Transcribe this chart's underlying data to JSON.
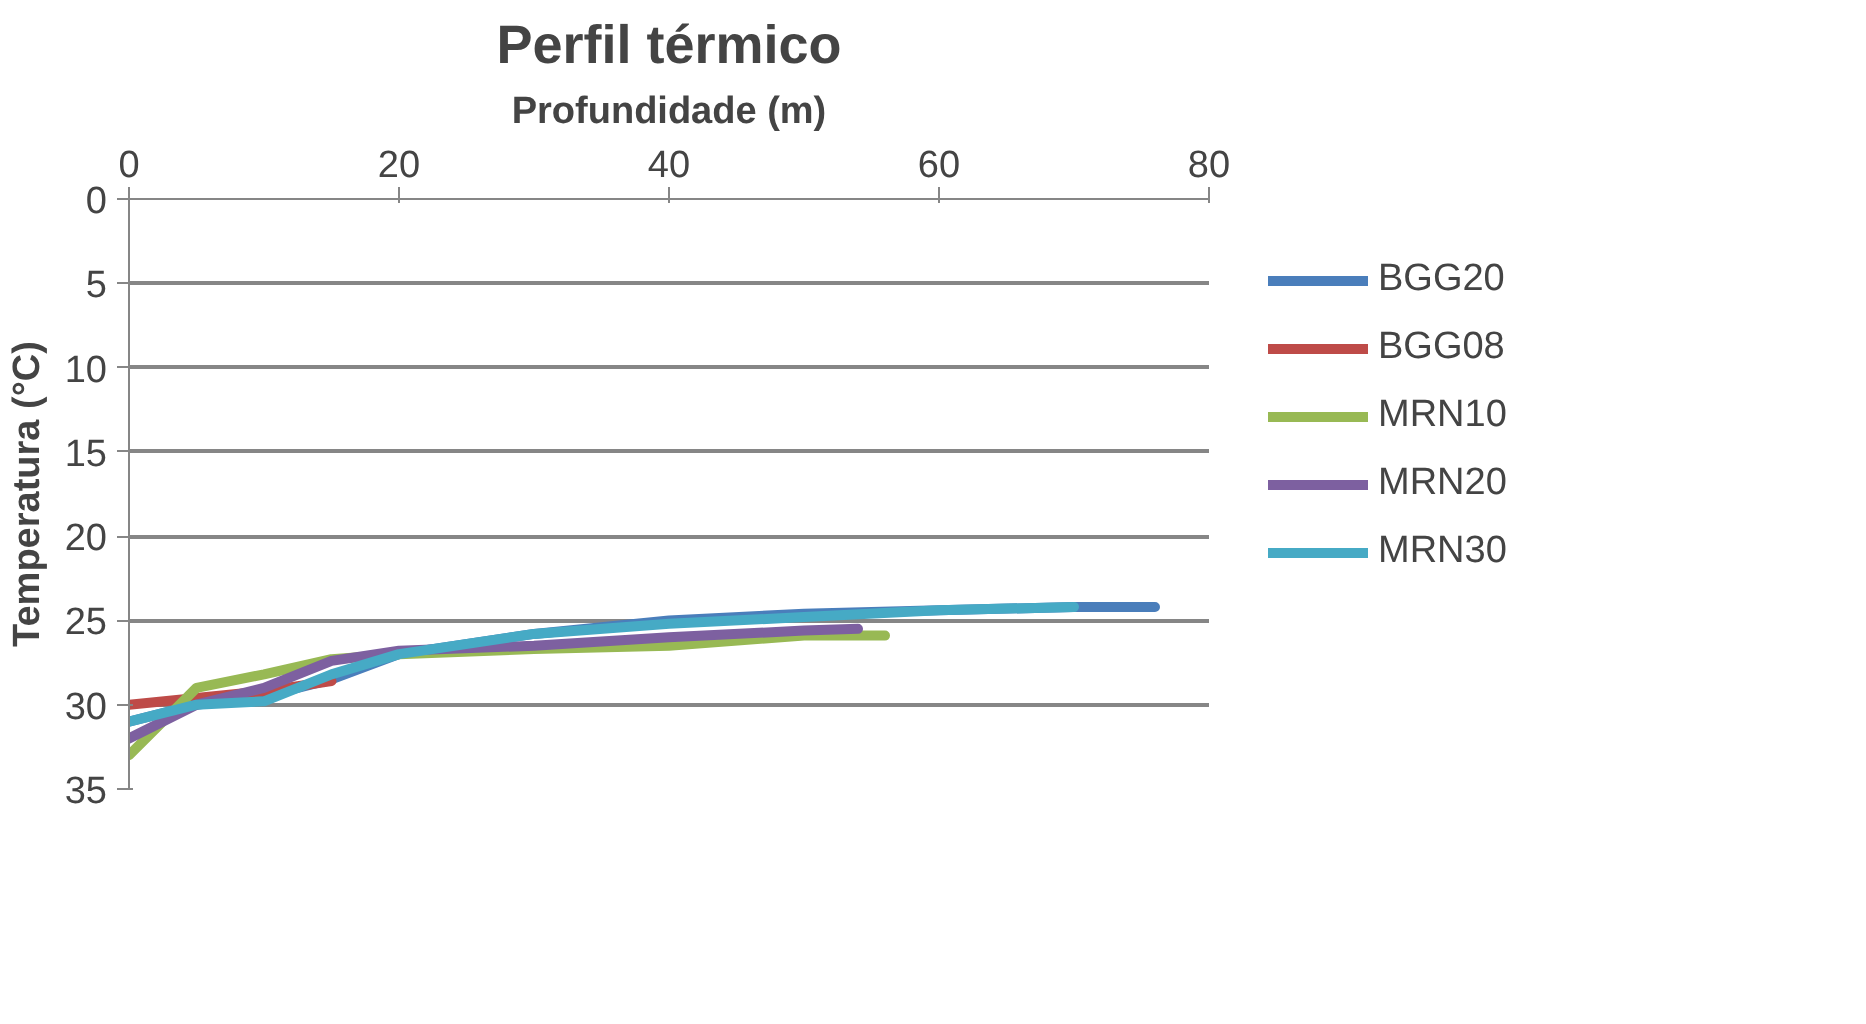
{
  "chart_data": {
    "type": "line",
    "title": "Perfil térmico",
    "xlabel": "Profundidade (m)",
    "ylabel": "Temperatura (°C)",
    "xlim": [
      0,
      80
    ],
    "xticks": [
      0,
      20,
      40,
      60,
      80
    ],
    "ylim": [
      35,
      0
    ],
    "yticks": [
      0,
      5,
      10,
      15,
      20,
      25,
      30,
      35
    ],
    "grid": "y",
    "legend": "right",
    "marker": "none",
    "series": [
      {
        "name": "BGG20",
        "color": "#4a7ebb",
        "x": [
          0,
          5,
          10,
          15,
          20,
          30,
          40,
          50,
          60,
          70,
          76
        ],
        "values": [
          31,
          30,
          29.5,
          28.5,
          27,
          25.8,
          25,
          24.6,
          24.4,
          24.2,
          24.2
        ]
      },
      {
        "name": "BGG08",
        "color": "#be4b48",
        "x": [
          0,
          5,
          10,
          15
        ],
        "values": [
          30,
          29.6,
          29.2,
          28.6
        ]
      },
      {
        "name": "MRN10",
        "color": "#98b954",
        "x": [
          0,
          5,
          10,
          15,
          20,
          30,
          40,
          50,
          56
        ],
        "values": [
          33,
          29,
          28.2,
          27.3,
          27,
          26.7,
          26.5,
          25.9,
          25.9
        ]
      },
      {
        "name": "MRN20",
        "color": "#7d60a0",
        "x": [
          0,
          5,
          10,
          15,
          20,
          30,
          40,
          50,
          54
        ],
        "values": [
          32,
          30,
          29,
          27.4,
          26.8,
          26.5,
          26,
          25.6,
          25.5
        ]
      },
      {
        "name": "MRN30",
        "color": "#46aac5",
        "x": [
          0,
          5,
          10,
          15,
          20,
          30,
          40,
          50,
          60,
          70
        ],
        "values": [
          31,
          30,
          29.8,
          28.2,
          27,
          25.8,
          25.2,
          24.8,
          24.4,
          24.2
        ]
      }
    ]
  }
}
